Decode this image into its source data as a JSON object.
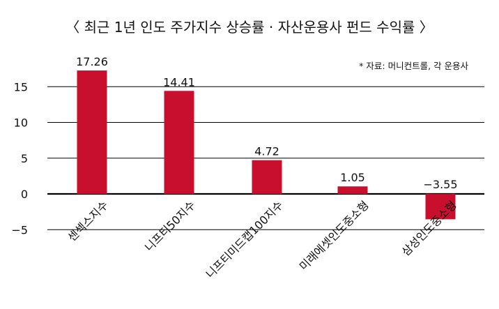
{
  "chart_data": {
    "type": "bar",
    "title": "〈 최근 1년 인도 주가지수 상승률 · 자산운용사 펀드 수익률 〉",
    "source": "* 자료: 머니컨트롤, 각 운용사",
    "categories": [
      "센섹스지수",
      "니프티50지수",
      "니프티미드캡100지수",
      "미래에셋인도중소형",
      "삼성인도중소형"
    ],
    "values": [
      17.26,
      14.41,
      4.72,
      1.05,
      -3.55
    ],
    "value_labels": [
      "17.26",
      "14.41",
      "4.72",
      "1.05",
      "−3.55"
    ],
    "yticks": [
      15,
      10,
      5,
      0,
      -5
    ],
    "ytick_labels": [
      "15",
      "10",
      "5",
      "0",
      "−5"
    ],
    "ylim": [
      -5,
      17.26
    ],
    "grid": true,
    "xlabel": "",
    "ylabel": "",
    "colors": {
      "bar": "#c8102e",
      "grid": "#000000",
      "text": "#111111"
    }
  }
}
